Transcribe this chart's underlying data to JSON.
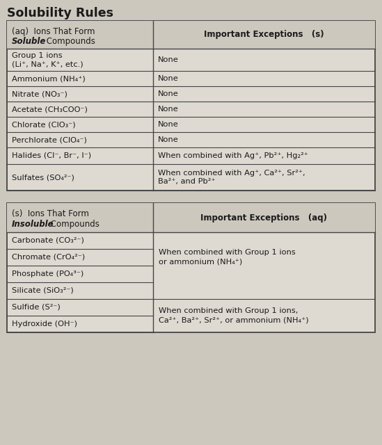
{
  "title": "Solubility Rules",
  "bg_color": "#ccc8be",
  "table_bg": "#dedad2",
  "header_bg": "#ccc8be",
  "border_color": "#444444",
  "text_color": "#1a1a1a",
  "table1_header_col1_line1": "(aq)  Ions That Form",
  "table1_header_col1_line2_italic": "Soluble",
  "table1_header_col1_line2_normal": " Compounds",
  "table1_header_col2": "Important Exceptions   (s)",
  "table1_rows": [
    [
      "Group 1 ions\n(Li⁺, Na⁺, K⁺, etc.)",
      "None"
    ],
    [
      "Ammonium (NH₄⁺)",
      "None"
    ],
    [
      "Nitrate (NO₃⁻)",
      "None"
    ],
    [
      "Acetate (CH₃COO⁻)",
      "None"
    ],
    [
      "Chlorate (ClO₃⁻)",
      "None"
    ],
    [
      "Perchlorate (ClO₄⁻)",
      "None"
    ],
    [
      "Halides (Cl⁻, Br⁻, I⁻)",
      "When combined with Ag⁺, Pb²⁺, Hg₂²⁺"
    ],
    [
      "Sulfates (SO₄²⁻)",
      "When combined with Ag⁺, Ca²⁺, Sr²⁺,\nBa²⁺, and Pb²⁺"
    ]
  ],
  "table2_header_col1_line1": "(s)  Ions That Form",
  "table2_header_col1_line2_italic": "Insoluble",
  "table2_header_col1_line2_normal": " Compounds",
  "table2_header_col2": "Important Exceptions   (aq)",
  "table2_rows_col1": [
    "Carbonate (CO₃²⁻)",
    "Chromate (CrO₄²⁻)",
    "Phosphate (PO₄³⁻)",
    "Silicate (SiO₃²⁻)",
    "Sulfide (S²⁻)",
    "Hydroxide (OH⁻)"
  ],
  "table2_exc_block1": "When combined with Group 1 ions\nor ammonium (NH₄⁺)",
  "table2_exc_block2": "When combined with Group 1 ions,\nCa²⁺, Ba²⁺, Sr²⁺, or ammonium (NH₄⁺)"
}
